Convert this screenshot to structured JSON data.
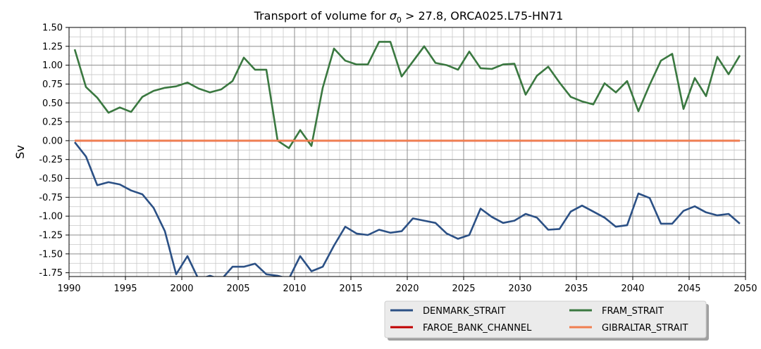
{
  "chart_data": {
    "type": "line",
    "title_main": "Transport of volume for ",
    "title_sigma": "σ",
    "title_sub": "0",
    "title_rest": " > 27.8, ORCA025.L75-HN71",
    "xlabel": "",
    "ylabel": "Sv",
    "xlim": [
      1990,
      2050
    ],
    "ylim": [
      -1.8,
      1.5
    ],
    "xticks": [
      1990,
      1995,
      2000,
      2005,
      2010,
      2015,
      2020,
      2025,
      2030,
      2035,
      2040,
      2045,
      2050
    ],
    "xtick_labels": [
      "1990",
      "1995",
      "2000",
      "2005",
      "2010",
      "2015",
      "2020",
      "2025",
      "2030",
      "2035",
      "2040",
      "2045",
      "2050"
    ],
    "yticks": [
      -1.75,
      -1.5,
      -1.25,
      -1.0,
      -0.75,
      -0.5,
      -0.25,
      0.0,
      0.25,
      0.5,
      0.75,
      1.0,
      1.25,
      1.5
    ],
    "ytick_labels": [
      "-1.75",
      "-1.50",
      "-1.25",
      "-1.00",
      "-0.75",
      "-0.50",
      "-0.25",
      "0.00",
      "0.25",
      "0.50",
      "0.75",
      "1.00",
      "1.25",
      "1.50"
    ],
    "grid": true,
    "legend_position": "below-right",
    "x": [
      1990.5,
      1991.5,
      1992.5,
      1993.5,
      1994.5,
      1995.5,
      1996.5,
      1997.5,
      1998.5,
      1999.5,
      2000.5,
      2001.5,
      2002.5,
      2003.5,
      2004.5,
      2005.5,
      2006.5,
      2007.5,
      2008.5,
      2009.5,
      2010.5,
      2011.5,
      2012.5,
      2013.5,
      2014.5,
      2015.5,
      2016.5,
      2017.5,
      2018.5,
      2019.5,
      2020.5,
      2021.5,
      2022.5,
      2023.5,
      2024.5,
      2025.5,
      2026.5,
      2027.5,
      2028.5,
      2029.5,
      2030.5,
      2031.5,
      2032.5,
      2033.5,
      2034.5,
      2035.5,
      2036.5,
      2037.5,
      2038.5,
      2039.5,
      2040.5,
      2041.5,
      2042.5,
      2043.5,
      2044.5,
      2045.5,
      2046.5,
      2047.5,
      2048.5,
      2049.5
    ],
    "series": [
      {
        "name": "DENMARK_STRAIT",
        "color": "#2b5085",
        "values": [
          -0.02,
          -0.21,
          -0.59,
          -0.55,
          -0.58,
          -0.66,
          -0.71,
          -0.89,
          -1.2,
          -1.77,
          -1.53,
          -1.84,
          -1.79,
          -1.84,
          -1.67,
          -1.67,
          -1.63,
          -1.77,
          -1.79,
          -1.83,
          -1.53,
          -1.73,
          -1.67,
          -1.39,
          -1.14,
          -1.23,
          -1.25,
          -1.18,
          -1.22,
          -1.2,
          -1.03,
          -1.06,
          -1.09,
          -1.23,
          -1.3,
          -1.25,
          -0.9,
          -1.01,
          -1.09,
          -1.06,
          -0.97,
          -1.02,
          -1.18,
          -1.17,
          -0.94,
          -0.86,
          -0.94,
          -1.02,
          -1.14,
          -1.12,
          -0.7,
          -0.76,
          -1.1,
          -1.1,
          -0.93,
          -0.87,
          -0.95,
          -0.99,
          -0.97,
          -1.1
        ]
      },
      {
        "name": "FRAM_STRAIT",
        "color": "#3a7840",
        "values": [
          1.21,
          0.71,
          0.57,
          0.37,
          0.44,
          0.38,
          0.58,
          0.66,
          0.7,
          0.72,
          0.77,
          0.69,
          0.64,
          0.68,
          0.79,
          1.1,
          0.94,
          0.94,
          0.0,
          -0.1,
          0.14,
          -0.07,
          0.7,
          1.22,
          1.06,
          1.01,
          1.01,
          1.31,
          1.31,
          0.85,
          1.05,
          1.25,
          1.03,
          1.0,
          0.94,
          1.18,
          0.96,
          0.95,
          1.01,
          1.02,
          0.61,
          0.86,
          0.98,
          0.77,
          0.58,
          0.52,
          0.48,
          0.76,
          0.64,
          0.79,
          0.39,
          0.74,
          1.06,
          1.15,
          0.42,
          0.83,
          0.59,
          1.11,
          0.88,
          1.13
        ]
      },
      {
        "name": "FAROE_BANK_CHANNEL",
        "color": "#c00000",
        "values": [
          0.0,
          0.0,
          0.0,
          0.0,
          0.0,
          0.0,
          0.0,
          0.0,
          0.0,
          0.0,
          0.0,
          0.0,
          0.0,
          0.0,
          0.0,
          0.0,
          0.0,
          0.0,
          0.0,
          0.0,
          0.0,
          0.0,
          0.0,
          0.0,
          0.0,
          0.0,
          0.0,
          0.0,
          0.0,
          0.0,
          0.0,
          0.0,
          0.0,
          0.0,
          0.0,
          0.0,
          0.0,
          0.0,
          0.0,
          0.0,
          0.0,
          0.0,
          0.0,
          0.0,
          0.0,
          0.0,
          0.0,
          0.0,
          0.0,
          0.0,
          0.0,
          0.0,
          0.0,
          0.0,
          0.0,
          0.0,
          0.0,
          0.0,
          0.0,
          0.0
        ]
      },
      {
        "name": "GIBRALTAR_STRAIT",
        "color": "#f07f50",
        "values": [
          0.0,
          0.0,
          0.0,
          0.0,
          0.0,
          0.0,
          0.0,
          0.0,
          0.0,
          0.0,
          0.0,
          0.0,
          0.0,
          0.0,
          0.0,
          0.0,
          0.0,
          0.0,
          0.0,
          0.0,
          0.0,
          0.0,
          0.0,
          0.0,
          0.0,
          0.0,
          0.0,
          0.0,
          0.0,
          0.0,
          0.0,
          0.0,
          0.0,
          0.0,
          0.0,
          0.0,
          0.0,
          0.0,
          0.0,
          0.0,
          0.0,
          0.0,
          0.0,
          0.0,
          0.0,
          0.0,
          0.0,
          0.0,
          0.0,
          0.0,
          0.0,
          0.0,
          0.0,
          0.0,
          0.0,
          0.0,
          0.0,
          0.0,
          0.0,
          0.0
        ]
      }
    ],
    "legend_order": [
      "DENMARK_STRAIT",
      "FRAM_STRAIT",
      "FAROE_BANK_CHANNEL",
      "GIBRALTAR_STRAIT"
    ]
  }
}
